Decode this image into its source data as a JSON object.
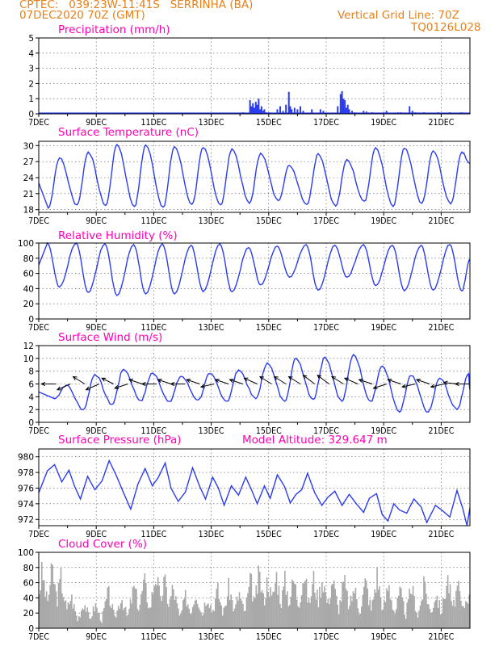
{
  "header": {
    "line1_left": "CPTEC:   039:23W-11:41S   SERRINHA (BA)",
    "line2_left": "07DEC2020 70Z (GMT)",
    "line2_right": "Vertical Grid Line: 70Z",
    "line3_right": "TQ0126L028"
  },
  "colors": {
    "header": "#e8801a",
    "title": "#ff00b4",
    "line": "#2b3cf0",
    "bar": "#2b3cf0",
    "cloud": "#a9a9a9"
  },
  "x_tick_labels": [
    "7DEC",
    "9DEC",
    "11DEC",
    "13DEC",
    "15DEC",
    "17DEC",
    "19DEC",
    "21DEC"
  ],
  "chart_data": [
    {
      "id": "precip",
      "type": "bar",
      "title": "Precipitation (mm/h)",
      "ylim": [
        0,
        5
      ],
      "yticks": [
        0,
        1,
        2,
        3,
        4,
        5
      ],
      "x_days": [
        7.9,
        8.3,
        8.9,
        9.4,
        9.9,
        10.4,
        10.9,
        11.4,
        11.9,
        12.4,
        13.0,
        13.5,
        14.1,
        14.35,
        14.4,
        14.45,
        14.5,
        14.55,
        14.6,
        14.65,
        14.7,
        14.75,
        14.8,
        14.85,
        14.9,
        15.0,
        15.3,
        15.4,
        15.5,
        15.6,
        15.7,
        15.75,
        15.8,
        15.9,
        16.0,
        16.1,
        16.2,
        16.5,
        16.8,
        16.9,
        17.4,
        17.5,
        17.55,
        17.6,
        17.65,
        17.7,
        17.75,
        17.8,
        17.9,
        18.0,
        18.3,
        18.4,
        18.6,
        19.0,
        19.1,
        19.5,
        19.6,
        19.9,
        20.0,
        20.1,
        20.4,
        20.9,
        21.3,
        21.7
      ],
      "values": [
        0.05,
        0.05,
        0.05,
        0.05,
        0.05,
        0.05,
        0.05,
        0.05,
        0.05,
        0.05,
        0.05,
        0.05,
        0.1,
        0.9,
        0.5,
        0.7,
        0.4,
        0.8,
        0.6,
        1.0,
        0.3,
        0.5,
        0.2,
        0.3,
        0.1,
        0.1,
        0.3,
        0.5,
        0.2,
        0.6,
        1.45,
        0.5,
        0.3,
        0.4,
        0.3,
        0.5,
        0.2,
        0.3,
        0.3,
        0.2,
        0.5,
        1.3,
        1.5,
        1.0,
        0.9,
        0.4,
        0.6,
        0.3,
        0.2,
        0.1,
        0.2,
        0.15,
        0.1,
        0.1,
        0.2,
        0.1,
        0.1,
        0.5,
        0.2,
        0.1,
        0.1,
        0.1,
        0.1,
        0.1
      ]
    },
    {
      "id": "temp",
      "type": "line",
      "title": "Surface Temperature (nC)",
      "ylim": [
        17.5,
        30.8
      ],
      "yticks": [
        18,
        21,
        24,
        27,
        30
      ],
      "maxima": [
        27.7,
        28.8,
        30.2,
        30.1,
        29.8,
        29.6,
        29.4,
        28.6,
        26.3,
        28.5,
        27.4,
        29.6,
        29.5,
        29.0,
        28.8,
        29.2,
        29.4
      ],
      "minima": [
        18.3,
        18.9,
        18.8,
        18.6,
        18.5,
        19.0,
        18.9,
        19.2,
        19.7,
        19.0,
        18.7,
        19.6,
        18.6,
        19.2,
        19.1,
        19.4,
        20.2
      ]
    },
    {
      "id": "rh",
      "type": "line",
      "title": "Relative Humidity (%)",
      "ylim": [
        0,
        100
      ],
      "yticks": [
        0,
        20,
        40,
        60,
        80,
        100
      ],
      "maxima": [
        100,
        100,
        99,
        98,
        99,
        97,
        99,
        94,
        96,
        98,
        97,
        98,
        97,
        97,
        98,
        96,
        96
      ],
      "minima": [
        42,
        35,
        31,
        33,
        33,
        36,
        36,
        45,
        55,
        38,
        55,
        44,
        37,
        38,
        37,
        35,
        38
      ]
    },
    {
      "id": "wind",
      "type": "line",
      "title": "Surface Wind (m/s)",
      "ylim": [
        0,
        12
      ],
      "yticks": [
        0,
        2,
        4,
        6,
        8,
        10,
        12
      ],
      "maxima": [
        5.8,
        7.5,
        8.3,
        7.7,
        7.2,
        7.6,
        8.2,
        9.3,
        10.0,
        10.2,
        10.6,
        8.8,
        7.3,
        6.9,
        7.6,
        9.2,
        6.3
      ],
      "minima": [
        3.7,
        2.0,
        2.8,
        3.4,
        3.3,
        3.5,
        3.3,
        3.7,
        3.3,
        3.6,
        3.3,
        3.3,
        1.6,
        1.6,
        2.0,
        1.6,
        2.3
      ],
      "arrows": [
        {
          "day": 7.6,
          "u": -1.0,
          "v": 0.0
        },
        {
          "day": 8.1,
          "u": -0.9,
          "v": -0.4
        },
        {
          "day": 8.6,
          "u": -0.8,
          "v": 0.5
        },
        {
          "day": 9.1,
          "u": -0.9,
          "v": -0.4
        },
        {
          "day": 9.6,
          "u": -0.8,
          "v": 0.4
        },
        {
          "day": 10.1,
          "u": -0.9,
          "v": -0.3
        },
        {
          "day": 10.6,
          "u": -0.9,
          "v": 0.3
        },
        {
          "day": 11.1,
          "u": -1.0,
          "v": 0.0
        },
        {
          "day": 11.6,
          "u": -0.9,
          "v": 0.3
        },
        {
          "day": 12.1,
          "u": -1.0,
          "v": 0.0
        },
        {
          "day": 12.6,
          "u": -0.9,
          "v": 0.3
        },
        {
          "day": 13.1,
          "u": -0.9,
          "v": -0.2
        },
        {
          "day": 13.6,
          "u": -0.9,
          "v": 0.3
        },
        {
          "day": 14.1,
          "u": -0.9,
          "v": 0.3
        },
        {
          "day": 14.6,
          "u": -0.9,
          "v": 0.4
        },
        {
          "day": 15.1,
          "u": -0.8,
          "v": 0.5
        },
        {
          "day": 15.6,
          "u": -0.8,
          "v": 0.5
        },
        {
          "day": 16.1,
          "u": -0.8,
          "v": 0.5
        },
        {
          "day": 16.6,
          "u": -0.8,
          "v": 0.6
        },
        {
          "day": 17.1,
          "u": -0.8,
          "v": 0.6
        },
        {
          "day": 17.6,
          "u": -0.8,
          "v": 0.5
        },
        {
          "day": 18.1,
          "u": -0.9,
          "v": 0.4
        },
        {
          "day": 18.6,
          "u": -0.9,
          "v": 0.3
        },
        {
          "day": 19.1,
          "u": -0.9,
          "v": -0.3
        },
        {
          "day": 19.6,
          "u": -0.9,
          "v": 0.3
        },
        {
          "day": 20.1,
          "u": -0.9,
          "v": -0.2
        },
        {
          "day": 20.6,
          "u": -0.9,
          "v": 0.3
        },
        {
          "day": 21.1,
          "u": -0.9,
          "v": -0.2
        },
        {
          "day": 21.6,
          "u": -1.0,
          "v": 0.1
        },
        {
          "day": 22.0,
          "u": -1.0,
          "v": 0.0
        }
      ]
    },
    {
      "id": "pres",
      "type": "line",
      "title": "Surface Pressure (hPa)",
      "subtitle": "Model Altitude: 329.647  m",
      "ylim": [
        971.2,
        981.0
      ],
      "yticks": [
        972,
        974,
        976,
        978,
        980
      ],
      "points": [
        [
          7.0,
          975.4
        ],
        [
          7.3,
          978.2
        ],
        [
          7.55,
          979.0
        ],
        [
          7.8,
          976.8
        ],
        [
          8.05,
          978.3
        ],
        [
          8.25,
          976.2
        ],
        [
          8.45,
          974.6
        ],
        [
          8.7,
          977.5
        ],
        [
          8.95,
          975.8
        ],
        [
          9.2,
          976.9
        ],
        [
          9.45,
          979.5
        ],
        [
          9.7,
          977.6
        ],
        [
          9.95,
          975.4
        ],
        [
          10.2,
          973.3
        ],
        [
          10.45,
          976.5
        ],
        [
          10.7,
          978.5
        ],
        [
          10.95,
          976.3
        ],
        [
          11.15,
          977.3
        ],
        [
          11.4,
          979.2
        ],
        [
          11.6,
          976.0
        ],
        [
          11.85,
          974.3
        ],
        [
          12.1,
          975.5
        ],
        [
          12.35,
          978.6
        ],
        [
          12.6,
          976.2
        ],
        [
          12.8,
          974.6
        ],
        [
          13.05,
          977.4
        ],
        [
          13.25,
          976.0
        ],
        [
          13.45,
          973.8
        ],
        [
          13.7,
          976.3
        ],
        [
          13.95,
          975.1
        ],
        [
          14.2,
          977.4
        ],
        [
          14.4,
          975.8
        ],
        [
          14.6,
          974.0
        ],
        [
          14.85,
          976.3
        ],
        [
          15.05,
          974.7
        ],
        [
          15.3,
          977.7
        ],
        [
          15.55,
          976.2
        ],
        [
          15.75,
          974.1
        ],
        [
          15.95,
          975.2
        ],
        [
          16.15,
          975.8
        ],
        [
          16.35,
          977.9
        ],
        [
          16.6,
          975.4
        ],
        [
          16.85,
          973.8
        ],
        [
          17.05,
          974.8
        ],
        [
          17.3,
          975.6
        ],
        [
          17.55,
          973.8
        ],
        [
          17.8,
          975.2
        ],
        [
          18.05,
          974.0
        ],
        [
          18.3,
          972.9
        ],
        [
          18.5,
          974.7
        ],
        [
          18.75,
          975.3
        ],
        [
          18.95,
          972.6
        ],
        [
          19.15,
          971.8
        ],
        [
          19.35,
          974.0
        ],
        [
          19.55,
          973.2
        ],
        [
          19.8,
          972.8
        ],
        [
          20.05,
          974.6
        ],
        [
          20.3,
          973.6
        ],
        [
          20.5,
          971.6
        ],
        [
          20.8,
          973.8
        ],
        [
          21.05,
          973.1
        ],
        [
          21.3,
          972.3
        ],
        [
          21.55,
          975.7
        ],
        [
          21.75,
          973.4
        ],
        [
          21.9,
          971.2
        ],
        [
          22.0,
          973.5
        ]
      ]
    },
    {
      "id": "cloud",
      "type": "bar",
      "title": "Cloud Cover (%)",
      "ylim": [
        0,
        100
      ],
      "yticks": [
        0,
        20,
        40,
        60,
        80,
        100
      ],
      "peaks": [
        [
          7.1,
          95
        ],
        [
          7.45,
          98
        ],
        [
          7.75,
          85
        ],
        [
          8.1,
          55
        ],
        [
          8.55,
          45
        ],
        [
          8.95,
          40
        ],
        [
          9.4,
          60
        ],
        [
          9.85,
          55
        ],
        [
          10.3,
          70
        ],
        [
          10.65,
          80
        ],
        [
          11.05,
          95
        ],
        [
          11.35,
          80
        ],
        [
          11.65,
          70
        ],
        [
          12.1,
          55
        ],
        [
          12.45,
          65
        ],
        [
          12.85,
          60
        ],
        [
          13.2,
          65
        ],
        [
          13.6,
          70
        ],
        [
          13.95,
          60
        ],
        [
          14.35,
          80
        ],
        [
          14.65,
          90
        ],
        [
          14.95,
          85
        ],
        [
          15.25,
          90
        ],
        [
          15.55,
          80
        ],
        [
          15.85,
          85
        ],
        [
          16.2,
          95
        ],
        [
          16.55,
          85
        ],
        [
          16.85,
          90
        ],
        [
          17.2,
          85
        ],
        [
          17.6,
          80
        ],
        [
          17.95,
          70
        ],
        [
          18.35,
          80
        ],
        [
          18.75,
          90
        ],
        [
          19.15,
          75
        ],
        [
          19.55,
          60
        ],
        [
          19.95,
          70
        ],
        [
          20.4,
          75
        ],
        [
          20.8,
          60
        ],
        [
          21.2,
          85
        ],
        [
          21.55,
          70
        ],
        [
          21.9,
          60
        ]
      ]
    }
  ]
}
